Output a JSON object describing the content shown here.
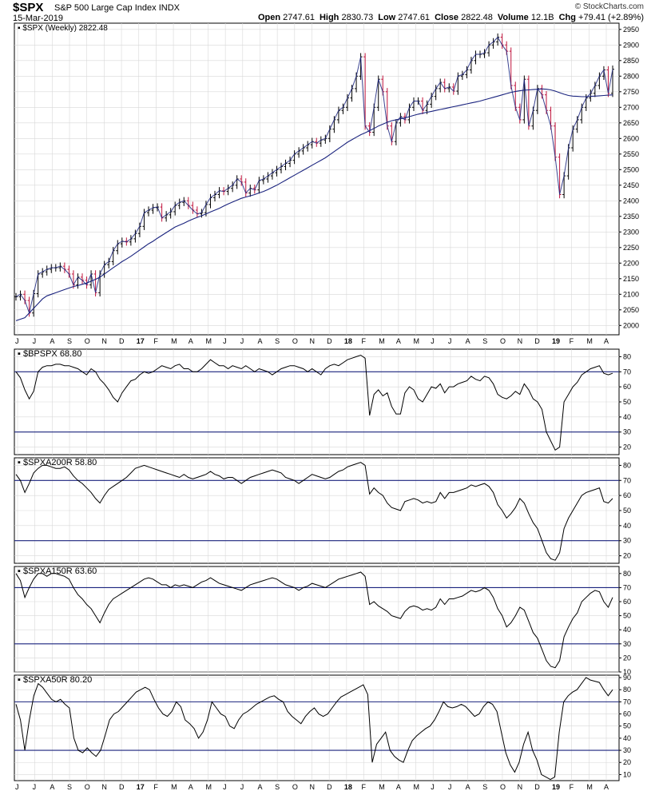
{
  "header": {
    "symbol": "$SPX",
    "name": "S&P 500 Large Cap Index",
    "exchange": "INDX",
    "date": "15-Mar-2019",
    "brand": "© StockCharts.com",
    "ohlc": [
      {
        "label": "Open",
        "value": "2747.61"
      },
      {
        "label": "High",
        "value": "2830.73"
      },
      {
        "label": "Low",
        "value": "2747.61"
      },
      {
        "label": "Close",
        "value": "2822.48"
      },
      {
        "label": "Volume",
        "value": "12.1B"
      },
      {
        "label": "Chg",
        "value": "+79.41 (+2.89%)"
      }
    ]
  },
  "colors": {
    "price_up": "#000000",
    "price_down": "#c0143c",
    "ma": "#1a237e",
    "threshold": "#1a237e",
    "grid": "#d8d8d8",
    "line": "#000000"
  },
  "chart_data": [
    {
      "type": "line",
      "label": "$SPX (Weekly) 2822.48",
      "series_name": "$SPX (Weekly)",
      "ylim": [
        1970,
        2970
      ],
      "yticks": [
        2000,
        2050,
        2100,
        2150,
        2200,
        2250,
        2300,
        2350,
        2400,
        2450,
        2500,
        2550,
        2600,
        2650,
        2700,
        2750,
        2800,
        2850,
        2900,
        2950
      ],
      "x_labels": [
        "J",
        "J",
        "A",
        "S",
        "O",
        "N",
        "D",
        "17",
        "F",
        "M",
        "A",
        "M",
        "J",
        "J",
        "A",
        "S",
        "O",
        "N",
        "D",
        "18",
        "F",
        "M",
        "A",
        "M",
        "J",
        "J",
        "A",
        "S",
        "O",
        "N",
        "D",
        "19",
        "F",
        "M",
        "A"
      ],
      "x_label_bold": [
        "17",
        "18",
        "19"
      ],
      "values": [
        2092,
        2100,
        2080,
        2040,
        2102,
        2165,
        2172,
        2180,
        2185,
        2185,
        2190,
        2180,
        2165,
        2130,
        2155,
        2145,
        2130,
        2165,
        2105,
        2165,
        2195,
        2205,
        2240,
        2262,
        2270,
        2268,
        2278,
        2295,
        2318,
        2362,
        2370,
        2378,
        2380,
        2345,
        2355,
        2365,
        2385,
        2395,
        2400,
        2385,
        2370,
        2358,
        2362,
        2388,
        2410,
        2420,
        2432,
        2430,
        2440,
        2450,
        2470,
        2460,
        2425,
        2440,
        2435,
        2465,
        2470,
        2480,
        2490,
        2500,
        2510,
        2520,
        2530,
        2550,
        2560,
        2570,
        2580,
        2590,
        2585,
        2595,
        2600,
        2630,
        2660,
        2690,
        2700,
        2730,
        2760,
        2800,
        2862,
        2640,
        2620,
        2700,
        2790,
        2750,
        2640,
        2590,
        2650,
        2670,
        2660,
        2700,
        2720,
        2720,
        2690,
        2710,
        2735,
        2760,
        2780,
        2760,
        2765,
        2752,
        2800,
        2805,
        2820,
        2850,
        2870,
        2870,
        2875,
        2900,
        2910,
        2925,
        2900,
        2880,
        2770,
        2700,
        2660,
        2790,
        2640,
        2690,
        2760,
        2740,
        2690,
        2640,
        2540,
        2420,
        2480,
        2570,
        2630,
        2660,
        2700,
        2730,
        2745,
        2770,
        2800,
        2820,
        2745,
        2822
      ],
      "ma_values": [
        2015,
        2020,
        2025,
        2040,
        2055,
        2070,
        2085,
        2095,
        2100,
        2105,
        2110,
        2115,
        2120,
        2125,
        2128,
        2132,
        2136,
        2142,
        2148,
        2155,
        2165,
        2175,
        2185,
        2195,
        2205,
        2213,
        2222,
        2232,
        2242,
        2252,
        2262,
        2270,
        2280,
        2289,
        2298,
        2307,
        2316,
        2322,
        2328,
        2335,
        2341,
        2347,
        2352,
        2358,
        2364,
        2370,
        2376,
        2383,
        2390,
        2396,
        2402,
        2408,
        2412,
        2416,
        2420,
        2425,
        2430,
        2436,
        2443,
        2450,
        2458,
        2466,
        2474,
        2482,
        2490,
        2498,
        2506,
        2514,
        2522,
        2530,
        2538,
        2548,
        2558,
        2568,
        2578,
        2588,
        2596,
        2604,
        2612,
        2618,
        2625,
        2632,
        2640,
        2646,
        2652,
        2657,
        2660,
        2663,
        2666,
        2670,
        2674,
        2678,
        2681,
        2684,
        2687,
        2690,
        2693,
        2696,
        2699,
        2702,
        2705,
        2708,
        2711,
        2714,
        2717,
        2720,
        2724,
        2728,
        2732,
        2736,
        2740,
        2744,
        2748,
        2751,
        2753,
        2755,
        2756,
        2757,
        2758,
        2759,
        2758,
        2756,
        2752,
        2747,
        2742,
        2738,
        2736,
        2735,
        2734,
        2734,
        2735,
        2736,
        2737,
        2738,
        2739,
        2740
      ]
    },
    {
      "type": "line",
      "label": "$BPSPX 68.80",
      "series_name": "$BPSPX",
      "ylim": [
        15,
        85
      ],
      "yticks": [
        20,
        30,
        40,
        50,
        60,
        70,
        80
      ],
      "thresholds": [
        30,
        70
      ],
      "values": [
        70,
        66,
        58,
        52,
        57,
        70,
        73,
        74,
        74,
        75,
        75,
        74,
        74,
        73,
        72,
        70,
        68,
        72,
        70,
        65,
        62,
        58,
        53,
        50,
        56,
        60,
        64,
        65,
        68,
        70,
        69,
        70,
        72,
        74,
        73,
        72,
        74,
        75,
        72,
        72,
        70,
        70,
        72,
        75,
        78,
        76,
        74,
        74,
        72,
        74,
        73,
        72,
        74,
        72,
        70,
        72,
        71,
        70,
        68,
        70,
        72,
        73,
        74,
        74,
        73,
        72,
        70,
        72,
        70,
        68,
        72,
        74,
        75,
        74,
        76,
        78,
        79,
        80,
        81,
        79,
        41,
        55,
        58,
        54,
        56,
        47,
        42,
        42,
        56,
        60,
        58,
        52,
        50,
        55,
        60,
        59,
        62,
        56,
        60,
        60,
        62,
        63,
        64,
        67,
        65,
        64,
        67,
        66,
        62,
        55,
        53,
        52,
        54,
        57,
        55,
        62,
        58,
        52,
        50,
        45,
        30,
        24,
        18,
        20,
        50,
        55,
        60,
        63,
        68,
        70,
        72,
        73,
        74,
        69,
        68,
        69
      ],
      "x_labels": []
    },
    {
      "type": "line",
      "label": "$SPXA200R 58.80",
      "series_name": "$SPXA200R",
      "ylim": [
        15,
        85
      ],
      "yticks": [
        20,
        30,
        40,
        50,
        60,
        70,
        80
      ],
      "thresholds": [
        30,
        70
      ],
      "values": [
        74,
        70,
        62,
        68,
        75,
        78,
        80,
        80,
        79,
        78,
        78,
        79,
        77,
        73,
        70,
        68,
        65,
        62,
        58,
        55,
        60,
        64,
        66,
        68,
        70,
        72,
        75,
        78,
        79,
        80,
        79,
        78,
        77,
        76,
        75,
        74,
        73,
        72,
        74,
        72,
        71,
        72,
        73,
        74,
        76,
        74,
        73,
        71,
        72,
        72,
        70,
        68,
        70,
        72,
        73,
        74,
        75,
        76,
        77,
        76,
        75,
        72,
        71,
        70,
        68,
        70,
        72,
        74,
        73,
        72,
        71,
        72,
        74,
        76,
        77,
        79,
        80,
        81,
        82,
        80,
        61,
        65,
        62,
        60,
        55,
        52,
        51,
        50,
        56,
        57,
        58,
        57,
        55,
        56,
        55,
        56,
        62,
        58,
        62,
        62,
        63,
        64,
        65,
        67,
        66,
        67,
        68,
        66,
        62,
        54,
        50,
        45,
        48,
        52,
        58,
        55,
        48,
        42,
        38,
        30,
        22,
        18,
        17,
        22,
        38,
        45,
        50,
        55,
        60,
        62,
        63,
        64,
        65,
        56,
        55,
        58
      ],
      "x_labels": []
    },
    {
      "type": "line",
      "label": "$SPXA150R 63.60",
      "series_name": "$SPXA150R",
      "ylim": [
        10,
        85
      ],
      "yticks": [
        10,
        20,
        30,
        40,
        50,
        60,
        70,
        80
      ],
      "thresholds": [
        30,
        70
      ],
      "values": [
        80,
        75,
        63,
        70,
        76,
        80,
        80,
        78,
        80,
        80,
        79,
        78,
        76,
        70,
        65,
        62,
        58,
        55,
        50,
        45,
        52,
        58,
        62,
        64,
        66,
        68,
        70,
        72,
        74,
        76,
        77,
        76,
        74,
        72,
        72,
        70,
        72,
        71,
        72,
        71,
        70,
        72,
        74,
        75,
        77,
        75,
        73,
        72,
        71,
        70,
        69,
        68,
        70,
        72,
        73,
        74,
        75,
        76,
        77,
        76,
        74,
        72,
        71,
        70,
        68,
        70,
        71,
        73,
        72,
        71,
        70,
        72,
        74,
        76,
        77,
        78,
        79,
        80,
        81,
        78,
        58,
        60,
        57,
        55,
        53,
        50,
        49,
        48,
        53,
        56,
        57,
        56,
        54,
        55,
        54,
        56,
        62,
        58,
        62,
        62,
        63,
        64,
        66,
        68,
        67,
        68,
        70,
        68,
        63,
        55,
        50,
        42,
        45,
        50,
        56,
        54,
        46,
        38,
        34,
        26,
        18,
        14,
        13,
        18,
        35,
        42,
        48,
        52,
        60,
        63,
        66,
        68,
        67,
        60,
        56,
        63
      ],
      "x_labels": []
    },
    {
      "type": "line",
      "label": "$SPXA50R 80.20",
      "series_name": "$SPXA50R",
      "ylim": [
        5,
        92
      ],
      "yticks": [
        10,
        20,
        30,
        40,
        50,
        60,
        70,
        80,
        90
      ],
      "thresholds": [
        30,
        70
      ],
      "values": [
        68,
        55,
        30,
        55,
        75,
        85,
        82,
        77,
        72,
        70,
        72,
        68,
        65,
        40,
        30,
        28,
        32,
        28,
        25,
        30,
        42,
        55,
        60,
        62,
        66,
        70,
        74,
        78,
        80,
        82,
        80,
        72,
        65,
        60,
        58,
        62,
        70,
        66,
        55,
        52,
        48,
        40,
        45,
        55,
        70,
        65,
        60,
        58,
        50,
        48,
        55,
        60,
        62,
        65,
        68,
        70,
        72,
        74,
        75,
        72,
        70,
        62,
        58,
        55,
        52,
        58,
        62,
        65,
        60,
        58,
        60,
        65,
        70,
        74,
        76,
        78,
        80,
        82,
        84,
        76,
        20,
        35,
        40,
        45,
        30,
        25,
        22,
        20,
        30,
        38,
        42,
        45,
        48,
        50,
        55,
        62,
        70,
        66,
        65,
        66,
        68,
        66,
        62,
        58,
        60,
        66,
        70,
        68,
        62,
        45,
        28,
        18,
        12,
        20,
        35,
        45,
        30,
        22,
        10,
        8,
        6,
        8,
        45,
        70,
        75,
        78,
        80,
        85,
        90,
        88,
        87,
        86,
        80,
        75,
        80
      ],
      "x_labels": [
        "J",
        "J",
        "A",
        "S",
        "O",
        "N",
        "D",
        "17",
        "F",
        "M",
        "A",
        "M",
        "J",
        "J",
        "A",
        "S",
        "O",
        "N",
        "D",
        "18",
        "F",
        "M",
        "A",
        "M",
        "J",
        "J",
        "A",
        "S",
        "O",
        "N",
        "D",
        "19",
        "F",
        "M",
        "A"
      ],
      "x_label_bold": [
        "17",
        "18",
        "19"
      ]
    }
  ]
}
